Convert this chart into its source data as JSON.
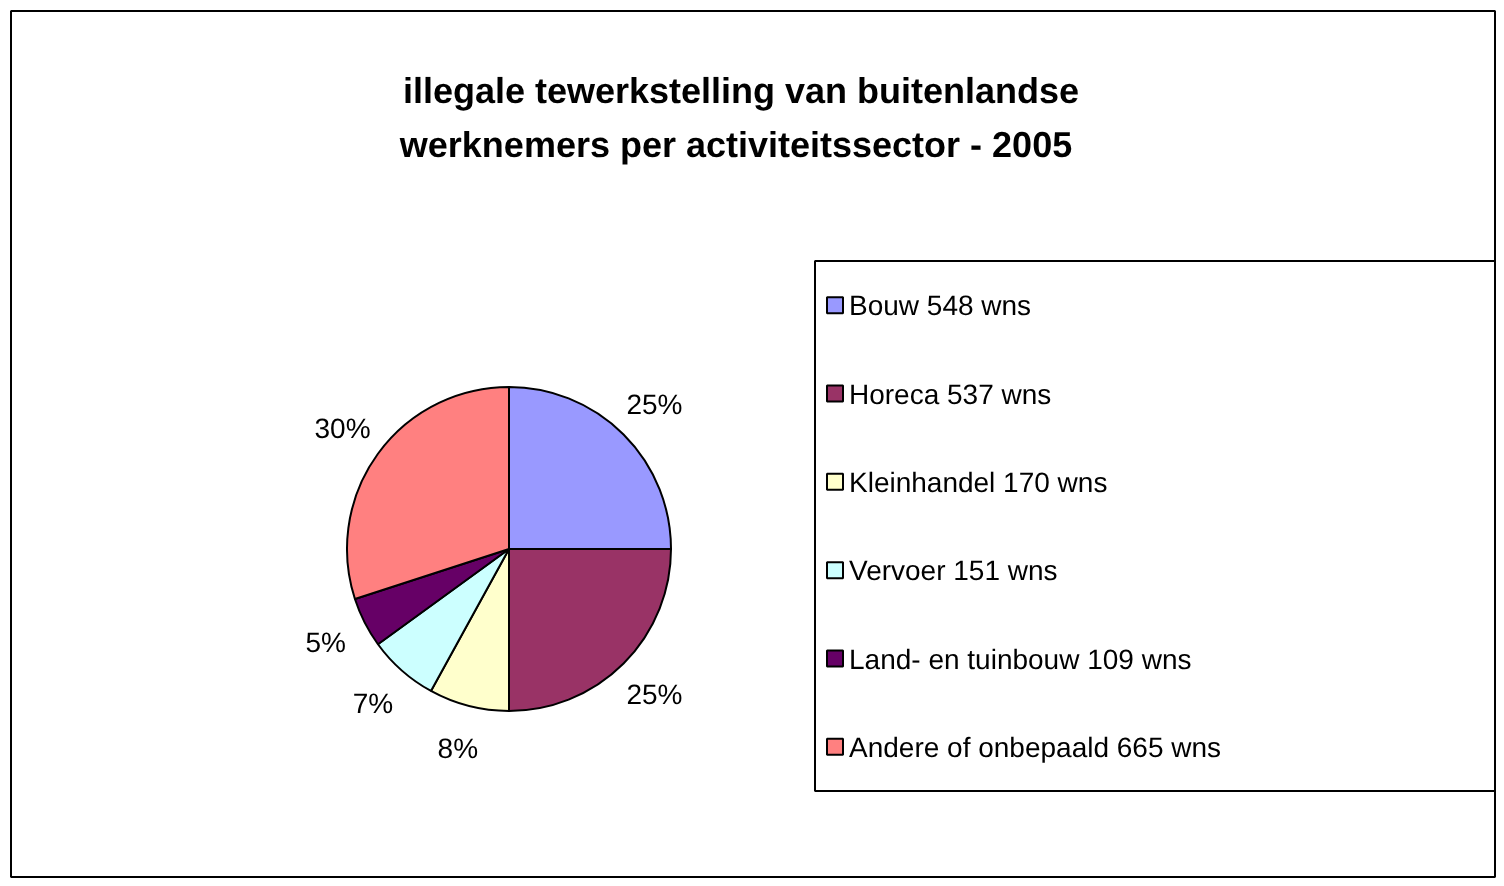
{
  "chart_data": {
    "type": "pie",
    "title": "illegale tewerkstelling van buitenlandse\nwerknemers per activiteitssector  - 2005",
    "categories": [
      "Bouw 548 wns",
      "Horeca 537 wns",
      "Kleinhandel 170 wns",
      "Vervoer 151 wns",
      "Land- en tuinbouw 109 wns",
      "Andere of onbepaald 665 wns"
    ],
    "values": [
      25,
      25,
      8,
      7,
      5,
      30
    ],
    "value_labels": [
      "25%",
      "25%",
      "8%",
      "7%",
      "5%",
      "30%"
    ],
    "colors": [
      "#9999ff",
      "#993366",
      "#ffffcc",
      "#ccffff",
      "#660066",
      "#ff8080"
    ],
    "legend": "right"
  }
}
